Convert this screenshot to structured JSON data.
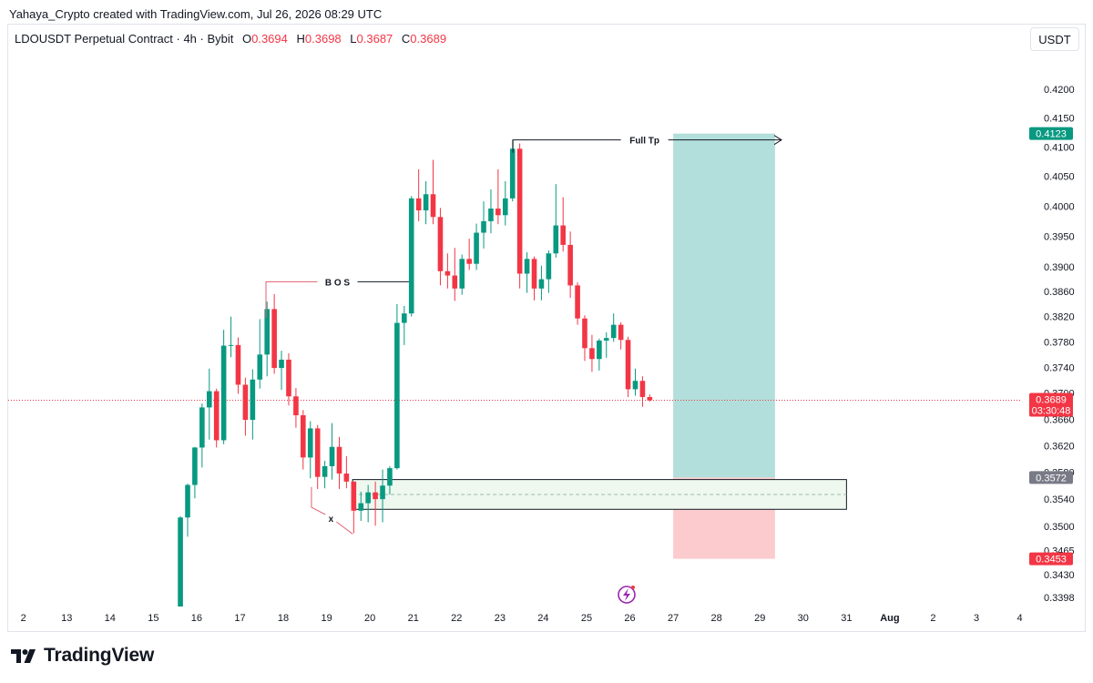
{
  "header": {
    "credit": "Yahaya_Crypto created with TradingView.com, Jul 26, 2026 08:29 UTC",
    "symbol": "LDOUSDT Perpetual Contract · 4h · Bybit",
    "ohlc": [
      {
        "label": "O",
        "value": "0.3694"
      },
      {
        "label": "H",
        "value": "0.3698"
      },
      {
        "label": "L",
        "value": "0.3687"
      },
      {
        "label": "C",
        "value": "0.3689"
      }
    ],
    "currency_button": "USDT"
  },
  "colors": {
    "up": "#089981",
    "down": "#f23645",
    "target_zone": "#b2dfdb",
    "stop_zone": "#fccbcd",
    "demand_zone": "#eef8ef",
    "price_line": "#f23645"
  },
  "chart_data": {
    "type": "candlestick",
    "instrument": "LDOUSDT Perpetual Contract",
    "interval": "4h",
    "exchange": "Bybit",
    "price_scale": "log",
    "y_tick_labels": [
      "0.4200",
      "0.4150",
      "0.4100",
      "0.4050",
      "0.4000",
      "0.3950",
      "0.3900",
      "0.3860",
      "0.3820",
      "0.3780",
      "0.3740",
      "0.3700",
      "0.3660",
      "0.3620",
      "0.3580",
      "0.3540",
      "0.3500",
      "0.3465",
      "0.3430",
      "0.3398"
    ],
    "x_tick_labels": [
      "2",
      "13",
      "14",
      "15",
      "16",
      "17",
      "18",
      "19",
      "20",
      "21",
      "22",
      "23",
      "24",
      "25",
      "26",
      "27",
      "28",
      "29",
      "30",
      "31",
      "Aug",
      "2",
      "3",
      "4"
    ],
    "x_range_days": [
      11.65,
      35.05
    ],
    "y_range": [
      0.3385,
      0.4248
    ],
    "candles": [
      {
        "t": 15.625,
        "o": 0.3385,
        "h": 0.3515,
        "l": 0.3385,
        "c": 0.3513
      },
      {
        "t": 15.792,
        "o": 0.3513,
        "h": 0.3563,
        "l": 0.3485,
        "c": 0.3561
      },
      {
        "t": 15.958,
        "o": 0.3561,
        "h": 0.3618,
        "l": 0.3541,
        "c": 0.3617
      },
      {
        "t": 16.125,
        "o": 0.3617,
        "h": 0.3684,
        "l": 0.3587,
        "c": 0.3678
      },
      {
        "t": 16.292,
        "o": 0.3678,
        "h": 0.3738,
        "l": 0.3629,
        "c": 0.3703
      },
      {
        "t": 16.458,
        "o": 0.3703,
        "h": 0.3707,
        "l": 0.3617,
        "c": 0.3628
      },
      {
        "t": 16.625,
        "o": 0.3628,
        "h": 0.3799,
        "l": 0.3622,
        "c": 0.3774
      },
      {
        "t": 16.792,
        "o": 0.3774,
        "h": 0.382,
        "l": 0.3756,
        "c": 0.3775
      },
      {
        "t": 16.958,
        "o": 0.3775,
        "h": 0.3787,
        "l": 0.3699,
        "c": 0.3713
      },
      {
        "t": 17.125,
        "o": 0.3713,
        "h": 0.3724,
        "l": 0.3635,
        "c": 0.3659
      },
      {
        "t": 17.292,
        "o": 0.3659,
        "h": 0.3737,
        "l": 0.3629,
        "c": 0.3721
      },
      {
        "t": 17.458,
        "o": 0.3721,
        "h": 0.3816,
        "l": 0.3707,
        "c": 0.376
      },
      {
        "t": 17.625,
        "o": 0.376,
        "h": 0.3844,
        "l": 0.3726,
        "c": 0.3832
      },
      {
        "t": 17.792,
        "o": 0.3832,
        "h": 0.3856,
        "l": 0.373,
        "c": 0.3739
      },
      {
        "t": 17.958,
        "o": 0.3739,
        "h": 0.3766,
        "l": 0.3705,
        "c": 0.3752
      },
      {
        "t": 18.125,
        "o": 0.3752,
        "h": 0.3762,
        "l": 0.3681,
        "c": 0.3695
      },
      {
        "t": 18.292,
        "o": 0.3695,
        "h": 0.3708,
        "l": 0.3647,
        "c": 0.3666
      },
      {
        "t": 18.458,
        "o": 0.3666,
        "h": 0.3674,
        "l": 0.3584,
        "c": 0.3602
      },
      {
        "t": 18.625,
        "o": 0.3602,
        "h": 0.3657,
        "l": 0.3571,
        "c": 0.3646
      },
      {
        "t": 18.792,
        "o": 0.3646,
        "h": 0.3651,
        "l": 0.3555,
        "c": 0.3573
      },
      {
        "t": 18.958,
        "o": 0.3573,
        "h": 0.3597,
        "l": 0.3556,
        "c": 0.3589
      },
      {
        "t": 19.125,
        "o": 0.3589,
        "h": 0.3654,
        "l": 0.3569,
        "c": 0.3618
      },
      {
        "t": 19.292,
        "o": 0.3618,
        "h": 0.3633,
        "l": 0.3555,
        "c": 0.3578
      },
      {
        "t": 19.458,
        "o": 0.3578,
        "h": 0.3604,
        "l": 0.3556,
        "c": 0.3566
      },
      {
        "t": 19.625,
        "o": 0.3566,
        "h": 0.3566,
        "l": 0.349,
        "c": 0.3523
      },
      {
        "t": 19.792,
        "o": 0.3523,
        "h": 0.3551,
        "l": 0.3508,
        "c": 0.3534
      },
      {
        "t": 19.958,
        "o": 0.3534,
        "h": 0.3561,
        "l": 0.3506,
        "c": 0.355
      },
      {
        "t": 20.125,
        "o": 0.355,
        "h": 0.3566,
        "l": 0.3501,
        "c": 0.354
      },
      {
        "t": 20.292,
        "o": 0.354,
        "h": 0.3584,
        "l": 0.3506,
        "c": 0.356
      },
      {
        "t": 20.458,
        "o": 0.356,
        "h": 0.3589,
        "l": 0.3547,
        "c": 0.3586
      },
      {
        "t": 20.625,
        "o": 0.3586,
        "h": 0.384,
        "l": 0.3584,
        "c": 0.381
      },
      {
        "t": 20.792,
        "o": 0.381,
        "h": 0.3837,
        "l": 0.3775,
        "c": 0.3825
      },
      {
        "t": 20.958,
        "o": 0.3825,
        "h": 0.4017,
        "l": 0.382,
        "c": 0.4013
      },
      {
        "t": 21.125,
        "o": 0.4013,
        "h": 0.4062,
        "l": 0.3975,
        "c": 0.3993
      },
      {
        "t": 21.292,
        "o": 0.3993,
        "h": 0.4042,
        "l": 0.397,
        "c": 0.402
      },
      {
        "t": 21.458,
        "o": 0.402,
        "h": 0.4078,
        "l": 0.397,
        "c": 0.3982
      },
      {
        "t": 21.625,
        "o": 0.3982,
        "h": 0.3997,
        "l": 0.387,
        "c": 0.3893
      },
      {
        "t": 21.792,
        "o": 0.3893,
        "h": 0.3922,
        "l": 0.3865,
        "c": 0.3886
      },
      {
        "t": 21.958,
        "o": 0.3886,
        "h": 0.3931,
        "l": 0.3845,
        "c": 0.3865
      },
      {
        "t": 22.125,
        "o": 0.3865,
        "h": 0.392,
        "l": 0.3855,
        "c": 0.3913
      },
      {
        "t": 22.292,
        "o": 0.3913,
        "h": 0.3946,
        "l": 0.3895,
        "c": 0.3905
      },
      {
        "t": 22.458,
        "o": 0.3905,
        "h": 0.3971,
        "l": 0.3895,
        "c": 0.3956
      },
      {
        "t": 22.625,
        "o": 0.3956,
        "h": 0.4008,
        "l": 0.393,
        "c": 0.3975
      },
      {
        "t": 22.792,
        "o": 0.3975,
        "h": 0.4028,
        "l": 0.3955,
        "c": 0.3996
      },
      {
        "t": 22.958,
        "o": 0.3996,
        "h": 0.4062,
        "l": 0.397,
        "c": 0.3985
      },
      {
        "t": 23.125,
        "o": 0.3985,
        "h": 0.4042,
        "l": 0.3968,
        "c": 0.4013
      },
      {
        "t": 23.292,
        "o": 0.4013,
        "h": 0.4112,
        "l": 0.4008,
        "c": 0.4097
      },
      {
        "t": 23.458,
        "o": 0.4097,
        "h": 0.4106,
        "l": 0.3865,
        "c": 0.3889
      },
      {
        "t": 23.625,
        "o": 0.3889,
        "h": 0.3924,
        "l": 0.3858,
        "c": 0.3913
      },
      {
        "t": 23.792,
        "o": 0.3913,
        "h": 0.3917,
        "l": 0.3846,
        "c": 0.3865
      },
      {
        "t": 23.958,
        "o": 0.3865,
        "h": 0.3902,
        "l": 0.3846,
        "c": 0.388
      },
      {
        "t": 24.125,
        "o": 0.388,
        "h": 0.3927,
        "l": 0.3858,
        "c": 0.3922
      },
      {
        "t": 24.292,
        "o": 0.3922,
        "h": 0.4037,
        "l": 0.3915,
        "c": 0.3968
      },
      {
        "t": 24.458,
        "o": 0.3968,
        "h": 0.4015,
        "l": 0.3925,
        "c": 0.3936
      },
      {
        "t": 24.625,
        "o": 0.3936,
        "h": 0.3958,
        "l": 0.385,
        "c": 0.387
      },
      {
        "t": 24.792,
        "o": 0.387,
        "h": 0.3875,
        "l": 0.3807,
        "c": 0.3817
      },
      {
        "t": 24.958,
        "o": 0.3817,
        "h": 0.3822,
        "l": 0.375,
        "c": 0.377
      },
      {
        "t": 25.125,
        "o": 0.377,
        "h": 0.3791,
        "l": 0.3733,
        "c": 0.3753
      },
      {
        "t": 25.292,
        "o": 0.3753,
        "h": 0.3785,
        "l": 0.3735,
        "c": 0.3782
      },
      {
        "t": 25.458,
        "o": 0.3782,
        "h": 0.3795,
        "l": 0.3755,
        "c": 0.3786
      },
      {
        "t": 25.625,
        "o": 0.3786,
        "h": 0.3825,
        "l": 0.378,
        "c": 0.3807
      },
      {
        "t": 25.792,
        "o": 0.3807,
        "h": 0.3811,
        "l": 0.3768,
        "c": 0.3783
      },
      {
        "t": 25.958,
        "o": 0.3783,
        "h": 0.3788,
        "l": 0.3694,
        "c": 0.3706
      },
      {
        "t": 26.125,
        "o": 0.3706,
        "h": 0.3738,
        "l": 0.3696,
        "c": 0.3719
      },
      {
        "t": 26.292,
        "o": 0.3719,
        "h": 0.3726,
        "l": 0.3679,
        "c": 0.3694
      },
      {
        "t": 26.458,
        "o": 0.3694,
        "h": 0.3698,
        "l": 0.3687,
        "c": 0.3689
      }
    ],
    "position": {
      "type": "long",
      "target_price": 0.4123,
      "entry_price": 0.3572,
      "stop_price": 0.3453,
      "start_day": 27.0,
      "end_day": 29.35
    },
    "demand_zone": {
      "top": 0.3569,
      "bottom": 0.3525,
      "start_day": 19.6,
      "end_day": 31.0
    },
    "annotations": [
      {
        "text": "B O S",
        "price": 0.3876,
        "from_day": 17.6,
        "to_day": 20.9
      },
      {
        "text": "Full Tp",
        "price": 0.4112,
        "from_day": 23.3,
        "to_day": 29.5
      },
      {
        "text": "x",
        "price": 0.3512,
        "day": 19.1
      }
    ],
    "price_tags": [
      {
        "value": "0.4123",
        "price": 0.4123,
        "color": "#089981"
      },
      {
        "value": "0.3689",
        "price": 0.3689,
        "color": "#f23645",
        "countdown": "03:30:48"
      },
      {
        "value": "0.3572",
        "price": 0.3572,
        "color": "#787b86"
      },
      {
        "value": "0.3453",
        "price": 0.3453,
        "color": "#f23645"
      }
    ]
  },
  "footer": {
    "brand": "TradingView"
  }
}
